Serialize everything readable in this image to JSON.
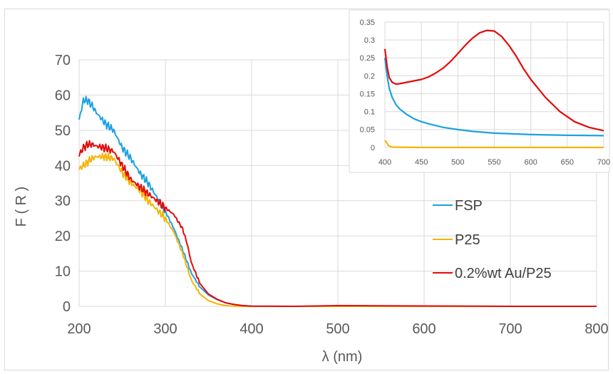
{
  "colors": {
    "FSP": "#1ba1e2",
    "P25": "#f5b400",
    "AuP25": "#e30b0b",
    "grid": "#d9d9d9",
    "text": "#595959"
  },
  "chart_data": [
    {
      "id": "main",
      "type": "line",
      "xlabel": "λ (nm)",
      "ylabel": "F ( R )",
      "xlim": [
        200,
        800
      ],
      "ylim": [
        0,
        70
      ],
      "xticks": [
        "200",
        "300",
        "400",
        "500",
        "600",
        "700",
        "800"
      ],
      "yticks": [
        "0",
        "10",
        "20",
        "30",
        "40",
        "50",
        "60",
        "70"
      ],
      "grid": true,
      "legend": "right",
      "series": [
        {
          "name": "FSP",
          "color": "#1ba1e2",
          "x": [
            200,
            205,
            210,
            215,
            220,
            225,
            230,
            240,
            250,
            260,
            270,
            280,
            290,
            300,
            310,
            320,
            330,
            340,
            350,
            360,
            370,
            380,
            390,
            400,
            450,
            500,
            600,
            700,
            800
          ],
          "y": [
            53,
            58.5,
            58.5,
            57,
            55,
            53.5,
            52,
            50,
            45,
            42,
            38,
            35,
            31,
            27,
            22,
            16,
            9.5,
            5.5,
            3.2,
            1.9,
            1.0,
            0.5,
            0.2,
            0.05,
            0,
            0,
            0,
            0,
            0
          ]
        },
        {
          "name": "P25",
          "color": "#f5b400",
          "x": [
            200,
            205,
            210,
            215,
            220,
            230,
            240,
            250,
            260,
            270,
            280,
            290,
            300,
            310,
            320,
            330,
            340,
            350,
            360,
            370,
            380,
            390,
            400,
            450,
            500,
            600,
            700,
            800
          ],
          "y": [
            39,
            40,
            41,
            42,
            42.5,
            42.5,
            42,
            38,
            35,
            33,
            30,
            27.5,
            25,
            21,
            15,
            7.5,
            3.5,
            1.6,
            0.7,
            0.2,
            0.05,
            0,
            0,
            0,
            0,
            0,
            0,
            0
          ]
        },
        {
          "name": "0.2%wt Au/P25",
          "color": "#e30b0b",
          "x": [
            200,
            205,
            210,
            215,
            220,
            230,
            240,
            250,
            260,
            270,
            280,
            290,
            300,
            310,
            320,
            325,
            330,
            340,
            350,
            360,
            370,
            380,
            390,
            400,
            450,
            500,
            600,
            700,
            800
          ],
          "y": [
            43,
            45,
            46,
            46,
            45.5,
            45,
            44,
            40,
            36,
            34,
            32,
            30,
            28,
            26,
            22,
            18,
            12.5,
            6.5,
            3.5,
            2.0,
            1.0,
            0.5,
            0.2,
            0.05,
            0,
            0.2,
            0.1,
            0,
            0
          ]
        }
      ]
    },
    {
      "id": "inset",
      "type": "line",
      "xlim": [
        400,
        700
      ],
      "ylim": [
        0,
        0.35
      ],
      "xticks": [
        "400",
        "450",
        "500",
        "550",
        "600",
        "650",
        "700"
      ],
      "yticks": [
        "0",
        "0.05",
        "0.1",
        "0.15",
        "0.2",
        "0.25",
        "0.3",
        "0.35"
      ],
      "grid": true,
      "series": [
        {
          "color": "#1ba1e2",
          "x": [
            400,
            403,
            406,
            410,
            415,
            420,
            430,
            440,
            450,
            460,
            480,
            500,
            520,
            550,
            600,
            650,
            700
          ],
          "y": [
            0.25,
            0.2,
            0.165,
            0.14,
            0.12,
            0.108,
            0.092,
            0.08,
            0.072,
            0.066,
            0.056,
            0.05,
            0.045,
            0.04,
            0.036,
            0.034,
            0.033
          ]
        },
        {
          "name": "",
          "color": "#f5b400",
          "x": [
            400,
            402,
            405,
            410,
            450,
            500,
            550,
            600,
            650,
            700
          ],
          "y": [
            0.02,
            0.015,
            0.005,
            0.001,
            0,
            0,
            0,
            0,
            0,
            0
          ]
        },
        {
          "color": "#e30b0b",
          "x": [
            400,
            403,
            406,
            410,
            415,
            420,
            430,
            440,
            450,
            460,
            470,
            480,
            490,
            500,
            510,
            520,
            530,
            540,
            550,
            560,
            570,
            580,
            590,
            600,
            620,
            640,
            660,
            680,
            700
          ],
          "y": [
            0.275,
            0.225,
            0.195,
            0.182,
            0.177,
            0.178,
            0.182,
            0.186,
            0.19,
            0.197,
            0.208,
            0.222,
            0.24,
            0.262,
            0.285,
            0.305,
            0.32,
            0.327,
            0.325,
            0.31,
            0.285,
            0.255,
            0.22,
            0.19,
            0.14,
            0.1,
            0.072,
            0.056,
            0.047
          ]
        }
      ]
    }
  ]
}
